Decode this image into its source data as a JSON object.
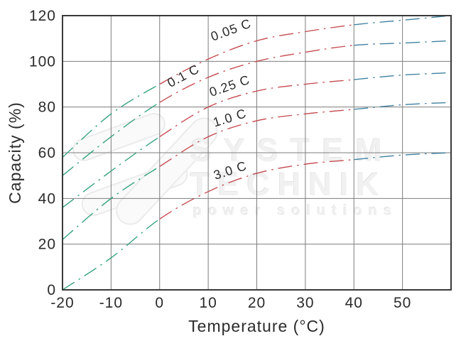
{
  "chart_data": {
    "type": "line",
    "title": "",
    "xlabel": "Temperature (°C)",
    "ylabel": "Capacity (%)",
    "xlim": [
      -20,
      60
    ],
    "ylim": [
      0,
      120
    ],
    "grid": true,
    "grid_x": [
      -10,
      0,
      10,
      20,
      30,
      40,
      50
    ],
    "grid_y": [
      20,
      40,
      60,
      80,
      100
    ],
    "xtick_labels": [
      {
        "t": -20,
        "text": "-20"
      },
      {
        "t": -10,
        "text": "-10"
      },
      {
        "t": 0,
        "text": "0"
      },
      {
        "t": 10,
        "text": "10"
      },
      {
        "t": 20,
        "text": "20"
      },
      {
        "t": 30,
        "text": "30"
      },
      {
        "t": 40,
        "text": "40"
      },
      {
        "t": 50,
        "text": "50"
      }
    ],
    "ytick_labels": [
      {
        "c": 0,
        "text": "0"
      },
      {
        "c": 20,
        "text": "20"
      },
      {
        "c": 40,
        "text": "40"
      },
      {
        "c": 60,
        "text": "60"
      },
      {
        "c": 80,
        "text": "80"
      },
      {
        "c": 100,
        "text": "100"
      },
      {
        "c": 120,
        "text": "120"
      }
    ],
    "x": [
      -20,
      -10,
      0,
      10,
      20,
      30,
      40,
      50,
      60
    ],
    "series": [
      {
        "name": "0.05C",
        "label": "0.05 C",
        "values": [
          58,
          77,
          90,
          101,
          109,
          113,
          116,
          118,
          120
        ],
        "label_pos": {
          "t": 15,
          "c": 112,
          "angle": -20
        }
      },
      {
        "name": "0.1C",
        "label": "0.1 C",
        "values": [
          50,
          67,
          82,
          93,
          100,
          104,
          107,
          108,
          109
        ],
        "label_pos": {
          "t": 5.3,
          "c": 92,
          "angle": -28
        }
      },
      {
        "name": "0.25C",
        "label": "0.25 C",
        "values": [
          36,
          52,
          67,
          80,
          87,
          90,
          92,
          94,
          95
        ],
        "label_pos": {
          "t": 14.7,
          "c": 87.5,
          "angle": -19
        }
      },
      {
        "name": "1.0C",
        "label": "1.0 C",
        "values": [
          22,
          40,
          54,
          67,
          74,
          77,
          79,
          81,
          82
        ],
        "label_pos": {
          "t": 14.7,
          "c": 73.5,
          "angle": -17
        }
      },
      {
        "name": "3.0C",
        "label": "3.0 C",
        "values": [
          0,
          14,
          31,
          43,
          51,
          55,
          57,
          59,
          60
        ],
        "label_pos": {
          "t": 14.8,
          "c": 50.5,
          "angle": -18
        }
      }
    ],
    "segment_colors": {
      "cold": "#2f9f7b",
      "mid": "#c5484e",
      "hot": "#3d80a0"
    },
    "segment_breaks": {
      "cold_below_t": 0,
      "mid_below_t": 40
    },
    "line_style": "dash-dot",
    "legend": "labels-on-curves"
  },
  "watermark": {
    "line1": "SYSTEM",
    "line2": "TECHNIK",
    "line3": "power solutions"
  },
  "colors": {
    "grid": "#7e7e7e",
    "border": "#3a3a3a",
    "text": "#2b2b2b",
    "watermark": "#f1f1f1"
  }
}
